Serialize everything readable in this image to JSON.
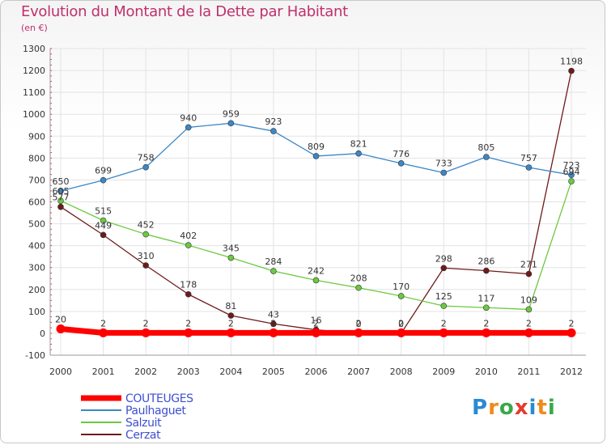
{
  "title": "Evolution du Montant de la Dette par Habitant",
  "unit": "(en €)",
  "logo": {
    "text": "Proxiti",
    "colors": [
      "#2a8ad4",
      "#f08a1c",
      "#3aa84a",
      "#e63a2e",
      "#2a8ad4",
      "#f08a1c",
      "#3aa84a"
    ]
  },
  "chart_data": {
    "type": "line",
    "x": [
      2000,
      2001,
      2002,
      2003,
      2004,
      2005,
      2006,
      2007,
      2008,
      2009,
      2010,
      2011,
      2012
    ],
    "ylim": [
      -100,
      1300
    ],
    "yticks": [
      -100,
      0,
      100,
      200,
      300,
      400,
      500,
      600,
      700,
      800,
      900,
      1000,
      1100,
      1200,
      1300
    ],
    "grid": true,
    "legend_position": "bottom-left",
    "series": [
      {
        "name": "COUTEUGES",
        "color": "#ff0000",
        "values": [
          20,
          2,
          2,
          2,
          2,
          2,
          2,
          2,
          2,
          2,
          2,
          2,
          2
        ]
      },
      {
        "name": "Paulhaguet",
        "color": "#3b87c8",
        "values": [
          650,
          699,
          758,
          940,
          959,
          923,
          809,
          821,
          776,
          733,
          805,
          757,
          723
        ]
      },
      {
        "name": "Salzuit",
        "color": "#6cc940",
        "values": [
          605,
          515,
          452,
          402,
          345,
          284,
          242,
          208,
          170,
          125,
          117,
          109,
          694
        ]
      },
      {
        "name": "Cerzat",
        "color": "#6e1a1a",
        "values": [
          577,
          449,
          310,
          178,
          81,
          43,
          16,
          0,
          0,
          298,
          286,
          271,
          1198
        ]
      }
    ],
    "data_labels": {
      "COUTEUGES": [
        "20",
        "2",
        "2",
        "2",
        "2",
        "2",
        "2",
        "2",
        "2",
        "2",
        "2",
        "2",
        "2"
      ],
      "Paulhaguet": [
        "650",
        "699",
        "758",
        "940",
        "959",
        "923",
        "809",
        "821",
        "776",
        "733",
        "805",
        "757",
        "723"
      ],
      "Salzuit": [
        "605",
        "515",
        "452",
        "402",
        "345",
        "284",
        "242",
        "208",
        "170",
        "125",
        "117",
        "109",
        "694"
      ],
      "Cerzat": [
        "577",
        "449",
        "310",
        "178",
        "81",
        "43",
        "16",
        "0",
        "0",
        "298",
        "286",
        "271",
        "1198"
      ]
    }
  }
}
